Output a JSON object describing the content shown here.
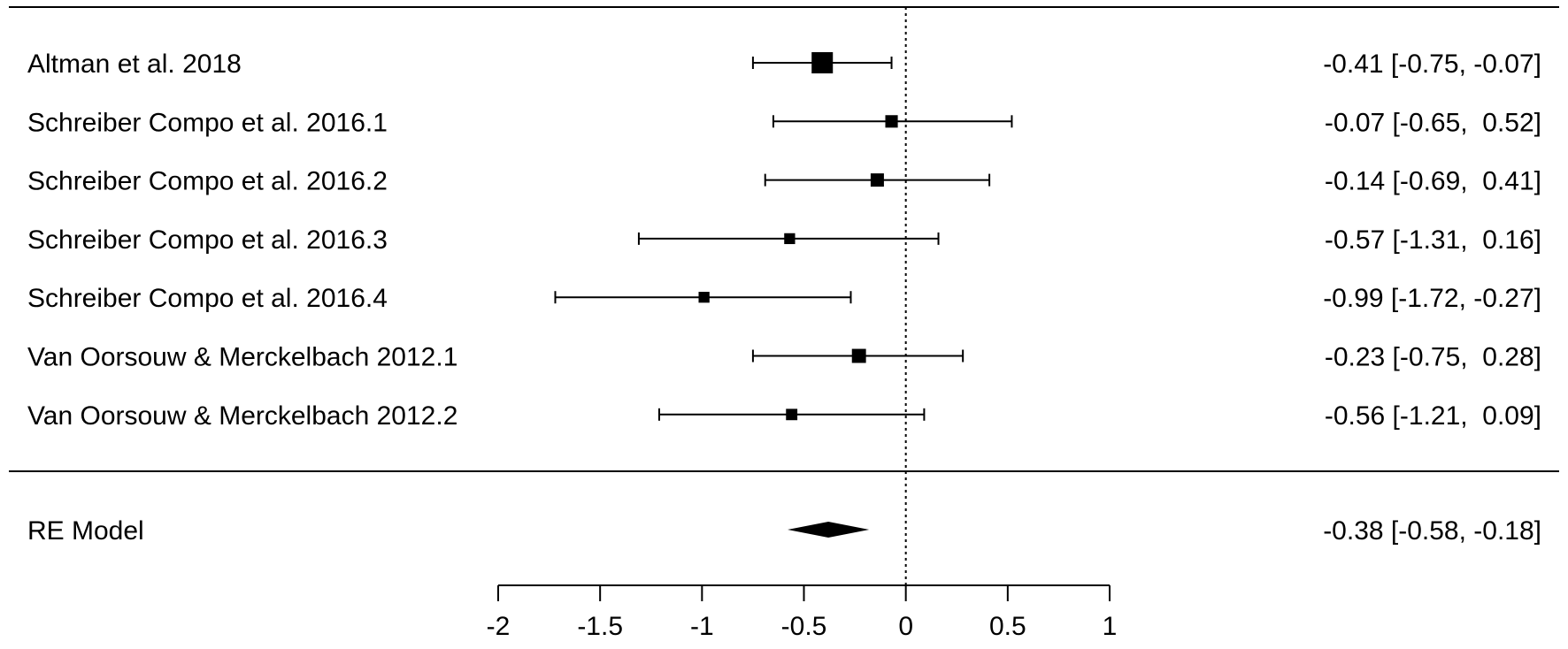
{
  "chart_data": {
    "type": "forest",
    "xlim": [
      -2,
      1
    ],
    "x_ticks": [
      -2,
      -1.5,
      -1,
      -0.5,
      0,
      0.5,
      1
    ],
    "tick_labels": [
      "-2",
      "-1.5",
      "-1",
      "-0.5",
      "0",
      "0.5",
      "1"
    ],
    "reference_line": 0,
    "grid": false,
    "studies": [
      {
        "label": "Altman et al. 2018",
        "estimate": -0.41,
        "lower": -0.75,
        "upper": -0.07,
        "ci_text": "-0.41 [-0.75, -0.07]",
        "weight": 1.0
      },
      {
        "label": "Schreiber Compo et al. 2016.1",
        "estimate": -0.07,
        "lower": -0.65,
        "upper": 0.52,
        "ci_text": "-0.07 [-0.65,  0.52]",
        "weight": 0.45
      },
      {
        "label": "Schreiber Compo et al. 2016.2",
        "estimate": -0.14,
        "lower": -0.69,
        "upper": 0.41,
        "ci_text": "-0.14 [-0.69,  0.41]",
        "weight": 0.5
      },
      {
        "label": "Schreiber Compo et al. 2016.3",
        "estimate": -0.57,
        "lower": -1.31,
        "upper": 0.16,
        "ci_text": "-0.57 [-1.31,  0.16]",
        "weight": 0.35
      },
      {
        "label": "Schreiber Compo et al. 2016.4",
        "estimate": -0.99,
        "lower": -1.72,
        "upper": -0.27,
        "ci_text": "-0.99 [-1.72, -0.27]",
        "weight": 0.35
      },
      {
        "label": "Van Oorsouw & Merckelbach 2012.1",
        "estimate": -0.23,
        "lower": -0.75,
        "upper": 0.28,
        "ci_text": "-0.23 [-0.75,  0.28]",
        "weight": 0.55
      },
      {
        "label": "Van Oorsouw & Merckelbach 2012.2",
        "estimate": -0.56,
        "lower": -1.21,
        "upper": 0.09,
        "ci_text": "-0.56 [-1.21,  0.09]",
        "weight": 0.38
      }
    ],
    "summary": {
      "label": "RE Model",
      "estimate": -0.38,
      "lower": -0.58,
      "upper": -0.18,
      "ci_text": "-0.38 [-0.58, -0.18]"
    }
  }
}
